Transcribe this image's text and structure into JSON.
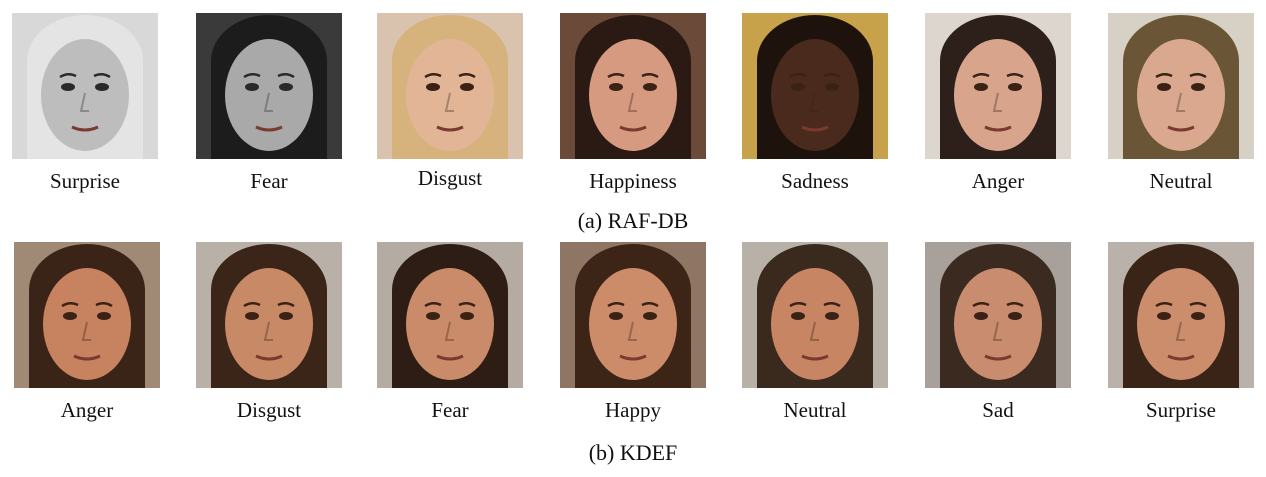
{
  "panels": [
    {
      "caption": "(a) RAF-DB",
      "faces": [
        {
          "label": "Surprise",
          "palette": "gray",
          "bg": "#d8d8d8",
          "skin": "#bdbdbd",
          "hair": "#e4e4e4",
          "icon": "face-photo-icon"
        },
        {
          "label": "Fear",
          "palette": "gray",
          "bg": "#3a3a3a",
          "skin": "#a9a9a9",
          "hair": "#1c1c1c",
          "icon": "face-photo-icon"
        },
        {
          "label": "Disgust",
          "palette": "color",
          "bg": "#d9c2ae",
          "skin": "#e2b597",
          "hair": "#d6b37c",
          "icon": "face-photo-icon"
        },
        {
          "label": "Happiness",
          "palette": "color",
          "bg": "#6b4a3a",
          "skin": "#d69a80",
          "hair": "#2b1a14",
          "icon": "face-photo-icon"
        },
        {
          "label": "Sadness",
          "palette": "color",
          "bg": "#c8a24a",
          "skin": "#4a2a1c",
          "hair": "#1e120c",
          "icon": "face-photo-icon"
        },
        {
          "label": "Anger",
          "palette": "color",
          "bg": "#dcd6cf",
          "skin": "#d9a48c",
          "hair": "#2d201a",
          "icon": "face-photo-icon"
        },
        {
          "label": "Neutral",
          "palette": "color",
          "bg": "#d7d0c4",
          "skin": "#d9a88e",
          "hair": "#6a5636",
          "icon": "face-photo-icon"
        }
      ]
    },
    {
      "caption": "(b) KDEF",
      "faces": [
        {
          "label": "Anger",
          "palette": "color",
          "bg": "#a08a76",
          "skin": "#c7825f",
          "hair": "#3a2418",
          "icon": "face-photo-icon"
        },
        {
          "label": "Disgust",
          "palette": "color",
          "bg": "#b9b0a8",
          "skin": "#c88a66",
          "hair": "#3b2519",
          "icon": "face-photo-icon"
        },
        {
          "label": "Fear",
          "palette": "color",
          "bg": "#b4aba3",
          "skin": "#c98b69",
          "hair": "#2e1d14",
          "icon": "face-photo-icon"
        },
        {
          "label": "Happy",
          "palette": "color",
          "bg": "#8f7564",
          "skin": "#cc8c69",
          "hair": "#3c2417",
          "icon": "face-photo-icon"
        },
        {
          "label": "Neutral",
          "palette": "color",
          "bg": "#b8b1a8",
          "skin": "#c78564",
          "hair": "#3a2a1e",
          "icon": "face-photo-icon"
        },
        {
          "label": "Sad",
          "palette": "color",
          "bg": "#a8a09a",
          "skin": "#c98c6e",
          "hair": "#3a2a1f",
          "icon": "face-photo-icon"
        },
        {
          "label": "Surprise",
          "palette": "color",
          "bg": "#bab2aa",
          "skin": "#cb8d6c",
          "hair": "#3a2418",
          "icon": "face-photo-icon"
        }
      ]
    }
  ]
}
